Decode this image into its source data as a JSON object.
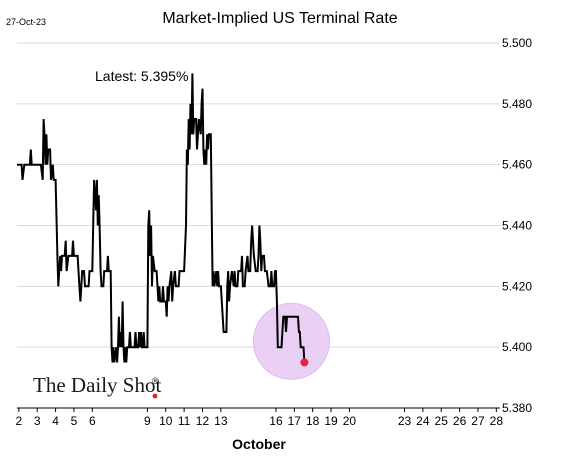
{
  "date_stamp": "27-Oct-23",
  "brand": "The Daily Shot",
  "brand_mark": "®",
  "colors": {
    "line": "#000000",
    "grid": "#d9d9d9",
    "highlight_fill": "#e8ccf5",
    "highlight_stroke": "#d7b4ee",
    "last_point": "#e8223a"
  },
  "chart_data": {
    "type": "line",
    "title": "Market-Implied US Terminal Rate",
    "xlabel": "October",
    "ylabel": "",
    "annotation": "Latest:  5.395%",
    "ylim": [
      5.38,
      5.5
    ],
    "xlim": [
      1.9,
      28.2
    ],
    "y_ticks": [
      5.38,
      5.4,
      5.42,
      5.44,
      5.46,
      5.48,
      5.5
    ],
    "y_tick_labels": [
      "5.380",
      "5.400",
      "5.420",
      "5.440",
      "5.460",
      "5.480",
      "5.500"
    ],
    "x_ticks": [
      2,
      3,
      4,
      5,
      6,
      9,
      10,
      11,
      12,
      13,
      16,
      17,
      18,
      19,
      20,
      23,
      24,
      25,
      26,
      27,
      28
    ],
    "x_tick_labels": [
      "2",
      "3",
      "4",
      "5",
      "6",
      "9",
      "10",
      "11",
      "12",
      "13",
      "16",
      "17",
      "18",
      "19",
      "20",
      "23",
      "24",
      "25",
      "26",
      "27",
      "28"
    ],
    "series": [
      {
        "values": [
          [
            1.9,
            5.46
          ],
          [
            2.15,
            5.46
          ],
          [
            2.2,
            5.455
          ],
          [
            2.3,
            5.46
          ],
          [
            2.6,
            5.46
          ],
          [
            2.65,
            5.465
          ],
          [
            2.7,
            5.46
          ],
          [
            3.2,
            5.46
          ],
          [
            3.3,
            5.455
          ],
          [
            3.35,
            5.475
          ],
          [
            3.4,
            5.47
          ],
          [
            3.45,
            5.46
          ],
          [
            3.5,
            5.47
          ],
          [
            3.55,
            5.46
          ],
          [
            3.6,
            5.465
          ],
          [
            3.7,
            5.465
          ],
          [
            3.75,
            5.455
          ],
          [
            3.85,
            5.46
          ],
          [
            3.9,
            5.455
          ],
          [
            4.0,
            5.455
          ],
          [
            4.1,
            5.43
          ],
          [
            4.15,
            5.42
          ],
          [
            4.2,
            5.425
          ],
          [
            4.25,
            5.43
          ],
          [
            4.3,
            5.425
          ],
          [
            4.35,
            5.43
          ],
          [
            4.5,
            5.43
          ],
          [
            4.55,
            5.435
          ],
          [
            4.6,
            5.425
          ],
          [
            4.7,
            5.43
          ],
          [
            4.9,
            5.43
          ],
          [
            4.95,
            5.435
          ],
          [
            5.0,
            5.43
          ],
          [
            5.2,
            5.43
          ],
          [
            5.3,
            5.42
          ],
          [
            5.35,
            5.415
          ],
          [
            5.4,
            5.42
          ],
          [
            5.45,
            5.425
          ],
          [
            5.55,
            5.425
          ],
          [
            5.6,
            5.42
          ],
          [
            5.8,
            5.42
          ],
          [
            5.85,
            5.425
          ],
          [
            6.0,
            5.425
          ],
          [
            6.1,
            5.455
          ],
          [
            6.15,
            5.45
          ],
          [
            6.2,
            5.445
          ],
          [
            6.25,
            5.455
          ],
          [
            6.3,
            5.44
          ],
          [
            6.35,
            5.45
          ],
          [
            6.4,
            5.44
          ],
          [
            6.45,
            5.425
          ],
          [
            6.5,
            5.42
          ],
          [
            6.6,
            5.42
          ],
          [
            6.65,
            5.425
          ],
          [
            6.8,
            5.425
          ],
          [
            6.85,
            5.43
          ],
          [
            6.9,
            5.425
          ],
          [
            7.0,
            5.425
          ],
          [
            7.05,
            5.4
          ],
          [
            7.1,
            5.395
          ],
          [
            7.15,
            5.4
          ],
          [
            7.2,
            5.395
          ],
          [
            7.3,
            5.4
          ],
          [
            7.35,
            5.395
          ],
          [
            7.4,
            5.4
          ],
          [
            7.45,
            5.41
          ],
          [
            7.5,
            5.4
          ],
          [
            7.55,
            5.405
          ],
          [
            7.6,
            5.4
          ],
          [
            7.65,
            5.415
          ],
          [
            7.7,
            5.4
          ],
          [
            7.75,
            5.395
          ],
          [
            7.8,
            5.4
          ],
          [
            7.85,
            5.395
          ],
          [
            7.9,
            5.4
          ],
          [
            8.0,
            5.4
          ],
          [
            8.05,
            5.405
          ],
          [
            8.1,
            5.4
          ],
          [
            8.3,
            5.4
          ],
          [
            8.35,
            5.405
          ],
          [
            8.4,
            5.4
          ],
          [
            8.5,
            5.4
          ],
          [
            8.55,
            5.405
          ],
          [
            8.6,
            5.4
          ],
          [
            8.65,
            5.405
          ],
          [
            8.7,
            5.4
          ],
          [
            8.75,
            5.4
          ],
          [
            8.8,
            5.405
          ],
          [
            8.85,
            5.4
          ],
          [
            9.0,
            5.4
          ],
          [
            9.05,
            5.44
          ],
          [
            9.1,
            5.445
          ],
          [
            9.15,
            5.43
          ],
          [
            9.2,
            5.44
          ],
          [
            9.25,
            5.42
          ],
          [
            9.3,
            5.43
          ],
          [
            9.4,
            5.425
          ],
          [
            9.5,
            5.425
          ],
          [
            9.55,
            5.42
          ],
          [
            9.6,
            5.415
          ],
          [
            9.65,
            5.42
          ],
          [
            9.7,
            5.415
          ],
          [
            9.8,
            5.415
          ],
          [
            9.85,
            5.42
          ],
          [
            9.9,
            5.415
          ],
          [
            10.0,
            5.415
          ],
          [
            10.05,
            5.41
          ],
          [
            10.1,
            5.42
          ],
          [
            10.15,
            5.415
          ],
          [
            10.2,
            5.42
          ],
          [
            10.3,
            5.425
          ],
          [
            10.35,
            5.415
          ],
          [
            10.4,
            5.42
          ],
          [
            10.5,
            5.425
          ],
          [
            10.55,
            5.42
          ],
          [
            10.7,
            5.42
          ],
          [
            10.75,
            5.425
          ],
          [
            10.9,
            5.425
          ],
          [
            11.0,
            5.425
          ],
          [
            11.1,
            5.44
          ],
          [
            11.15,
            5.465
          ],
          [
            11.2,
            5.46
          ],
          [
            11.25,
            5.475
          ],
          [
            11.3,
            5.465
          ],
          [
            11.35,
            5.48
          ],
          [
            11.4,
            5.47
          ],
          [
            11.45,
            5.49
          ],
          [
            11.5,
            5.47
          ],
          [
            11.55,
            5.475
          ],
          [
            11.65,
            5.475
          ],
          [
            11.7,
            5.465
          ],
          [
            11.75,
            5.47
          ],
          [
            11.8,
            5.475
          ],
          [
            11.9,
            5.47
          ],
          [
            11.95,
            5.48
          ],
          [
            12.0,
            5.485
          ],
          [
            12.05,
            5.465
          ],
          [
            12.1,
            5.46
          ],
          [
            12.15,
            5.465
          ],
          [
            12.2,
            5.46
          ],
          [
            12.25,
            5.47
          ],
          [
            12.3,
            5.465
          ],
          [
            12.35,
            5.47
          ],
          [
            12.45,
            5.47
          ],
          [
            12.5,
            5.445
          ],
          [
            12.55,
            5.42
          ],
          [
            12.6,
            5.425
          ],
          [
            12.65,
            5.42
          ],
          [
            12.75,
            5.425
          ],
          [
            12.8,
            5.42
          ],
          [
            12.85,
            5.425
          ],
          [
            12.9,
            5.42
          ],
          [
            13.0,
            5.42
          ],
          [
            13.05,
            5.415
          ],
          [
            13.1,
            5.41
          ],
          [
            13.15,
            5.405
          ],
          [
            13.3,
            5.405
          ],
          [
            13.35,
            5.42
          ],
          [
            13.4,
            5.425
          ],
          [
            13.45,
            5.415
          ],
          [
            13.5,
            5.42
          ],
          [
            13.6,
            5.425
          ],
          [
            13.7,
            5.42
          ],
          [
            13.75,
            5.425
          ],
          [
            13.8,
            5.42
          ],
          [
            13.9,
            5.42
          ],
          [
            13.95,
            5.425
          ],
          [
            14.1,
            5.425
          ],
          [
            14.15,
            5.43
          ],
          [
            14.2,
            5.42
          ],
          [
            14.3,
            5.42
          ],
          [
            14.35,
            5.425
          ],
          [
            14.45,
            5.43
          ],
          [
            14.5,
            5.425
          ],
          [
            14.6,
            5.425
          ],
          [
            14.65,
            5.435
          ],
          [
            14.7,
            5.44
          ],
          [
            14.75,
            5.435
          ],
          [
            14.8,
            5.43
          ],
          [
            14.9,
            5.425
          ],
          [
            15.0,
            5.425
          ],
          [
            15.05,
            5.43
          ],
          [
            15.1,
            5.44
          ],
          [
            15.15,
            5.435
          ],
          [
            15.2,
            5.425
          ],
          [
            15.25,
            5.43
          ],
          [
            15.35,
            5.43
          ],
          [
            15.4,
            5.425
          ],
          [
            15.5,
            5.425
          ],
          [
            15.6,
            5.42
          ],
          [
            15.7,
            5.42
          ],
          [
            15.75,
            5.425
          ],
          [
            15.8,
            5.42
          ],
          [
            15.9,
            5.42
          ],
          [
            15.95,
            5.425
          ],
          [
            16.0,
            5.425
          ],
          [
            16.05,
            5.415
          ],
          [
            16.1,
            5.4
          ],
          [
            16.2,
            5.4
          ],
          [
            16.3,
            5.4
          ],
          [
            16.35,
            5.405
          ],
          [
            16.4,
            5.41
          ],
          [
            16.5,
            5.41
          ],
          [
            16.55,
            5.405
          ],
          [
            16.6,
            5.41
          ],
          [
            16.7,
            5.41
          ],
          [
            16.9,
            5.41
          ],
          [
            17.1,
            5.41
          ],
          [
            17.2,
            5.41
          ],
          [
            17.25,
            5.405
          ],
          [
            17.3,
            5.405
          ],
          [
            17.35,
            5.4
          ],
          [
            17.4,
            5.4
          ],
          [
            17.5,
            5.4
          ],
          [
            17.55,
            5.395
          ]
        ]
      }
    ],
    "last_point": [
      17.55,
      5.395
    ]
  }
}
